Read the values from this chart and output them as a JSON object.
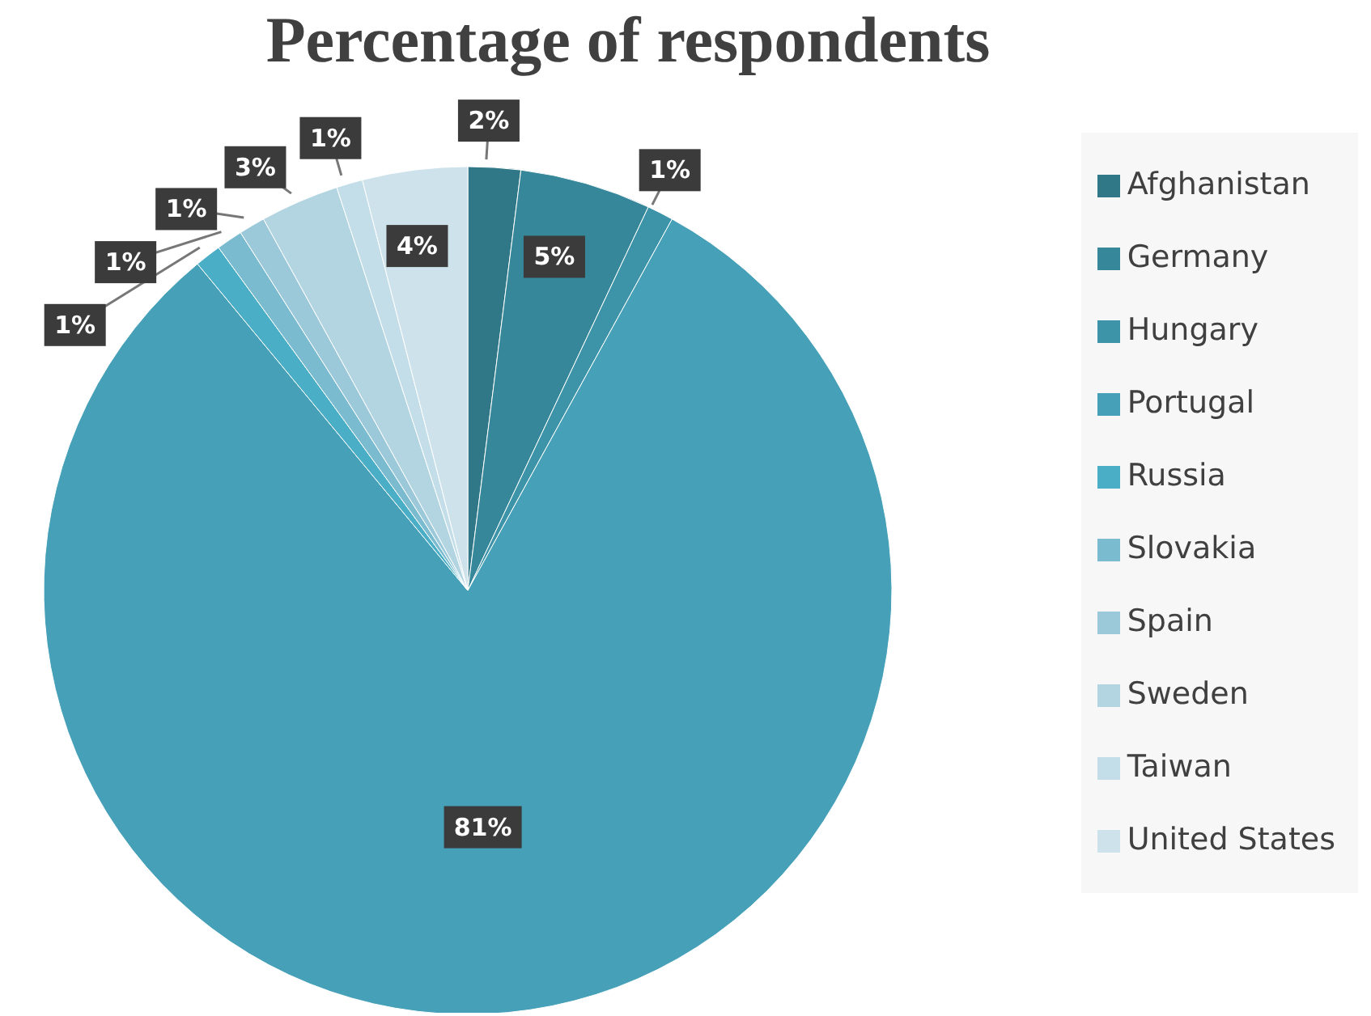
{
  "chart_data": {
    "type": "pie",
    "title": "Percentage of respondents",
    "categories": [
      "Afghanistan",
      "Germany",
      "Hungary",
      "Portugal",
      "Russia",
      "Slovakia",
      "Spain",
      "Sweden",
      "Taiwan",
      "United States"
    ],
    "values": [
      2,
      5,
      1,
      81,
      1,
      1,
      1,
      3,
      1,
      4
    ],
    "value_labels": [
      "2%",
      "5%",
      "1%",
      "81%",
      "1%",
      "1%",
      "1%",
      "3%",
      "1%",
      "4%"
    ],
    "colors": [
      "#307888",
      "#37879a",
      "#3d93a8",
      "#45a0b8",
      "#4aaec6",
      "#7bbbcf",
      "#9bc9da",
      "#b3d5e2",
      "#c3dee8",
      "#cde2ea"
    ],
    "legend": "right"
  }
}
